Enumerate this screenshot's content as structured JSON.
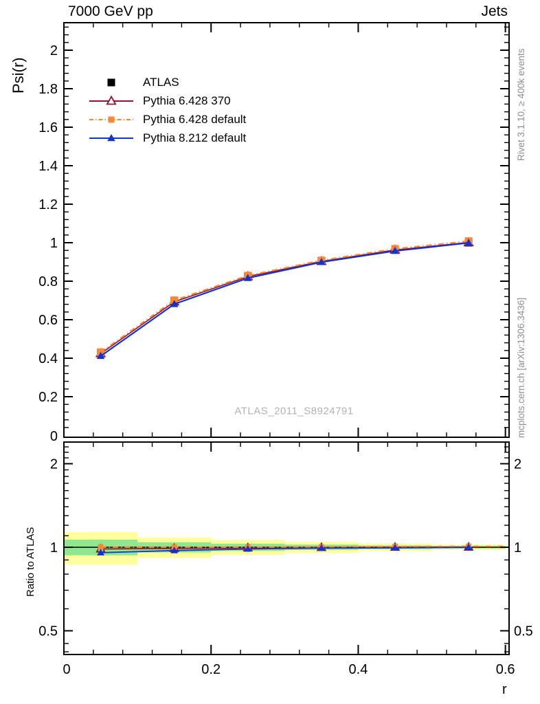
{
  "header": {
    "left": "7000 GeV pp",
    "right": "Jets"
  },
  "watermark": "ATLAS_2011_S8924791",
  "side_notes": {
    "top": "Rivet 3.1.10, ≥ 400k events",
    "bottom": "mcplots.cern.ch [arXiv:1306.3436]"
  },
  "colors": {
    "axis": "#000000",
    "atlas": "#000000",
    "pythia6_370": "#96112b",
    "pythia6_default": "#ff8633",
    "pythia8_default": "#1233cc",
    "band_yellow": "#ffff9e",
    "band_green": "#8fe88f",
    "note_gray": "#8f8f8f",
    "watermark_gray": "#b2b2b2"
  },
  "chart_data": {
    "type": "line",
    "title": "7000 GeV pp — Jets",
    "xlabel": "r",
    "ylabel_main": "Psi(r)",
    "ylabel_ratio": "Ratio to ATLAS",
    "xlim": [
      0,
      0.605
    ],
    "ylim_main": [
      0,
      2.14
    ],
    "ylim_ratio": [
      0.41,
      2.44
    ],
    "ratio_scale": "log",
    "grid": false,
    "x_major_ticks": [
      0,
      0.2,
      0.4,
      0.6
    ],
    "x_tick_labels": [
      "0",
      "0.2",
      "0.4",
      "0.6"
    ],
    "y_major_ticks_main": [
      0.2,
      0.4,
      0.6,
      0.8,
      1,
      1.2,
      1.4,
      1.6,
      1.8,
      2
    ],
    "y_tick_labels_main": [
      "0.2",
      "0.4",
      "0.6",
      "0.8",
      "1",
      "1.2",
      "1.4",
      "1.6",
      "1.8",
      "2"
    ],
    "y_zero_label_main": "0",
    "y_major_ticks_ratio": [
      0.5,
      1,
      2
    ],
    "y_tick_labels_ratio": [
      "0.5",
      "1",
      "2"
    ],
    "x": [
      0.05,
      0.15,
      0.25,
      0.35,
      0.45,
      0.55
    ],
    "bin_edges": [
      0,
      0.1,
      0.2,
      0.3,
      0.4,
      0.5,
      0.6
    ],
    "series": [
      {
        "name": "ATLAS",
        "role": "data",
        "marker": "square-filled",
        "color": "#000000",
        "line": "none",
        "values": [
          0.43,
          0.7,
          0.828,
          0.905,
          0.962,
          1.0
        ]
      },
      {
        "name": "Pythia 6.428 370",
        "role": "mc",
        "marker": "triangle-open",
        "color": "#96112b",
        "line": "solid",
        "values": [
          0.424,
          0.693,
          0.824,
          0.903,
          0.962,
          1.001
        ],
        "ratio": [
          0.986,
          0.99,
          0.995,
          0.998,
          1.0,
          1.001
        ]
      },
      {
        "name": "Pythia 6.428 default",
        "role": "mc",
        "marker": "square-filled",
        "color": "#ff8633",
        "line": "dashdot",
        "values": [
          0.431,
          0.701,
          0.829,
          0.908,
          0.968,
          1.008
        ],
        "ratio": [
          1.002,
          1.001,
          1.001,
          1.003,
          1.006,
          1.008
        ]
      },
      {
        "name": "Pythia 8.212 default",
        "role": "mc",
        "marker": "triangle-filled",
        "color": "#1233cc",
        "line": "solid",
        "values": [
          0.411,
          0.681,
          0.816,
          0.899,
          0.957,
          0.999
        ],
        "ratio": [
          0.956,
          0.973,
          0.986,
          0.993,
          0.995,
          0.999
        ]
      }
    ],
    "ratio_reference_line": 1,
    "ratio_bands": {
      "yellow": {
        "color": "#ffff9e",
        "half_widths": [
          0.135,
          0.085,
          0.062,
          0.045,
          0.032,
          0.022
        ]
      },
      "green": {
        "color": "#8fe88f",
        "half_widths": [
          0.065,
          0.042,
          0.03,
          0.022,
          0.015,
          0.01
        ]
      }
    },
    "legend_position": "upper-left"
  }
}
